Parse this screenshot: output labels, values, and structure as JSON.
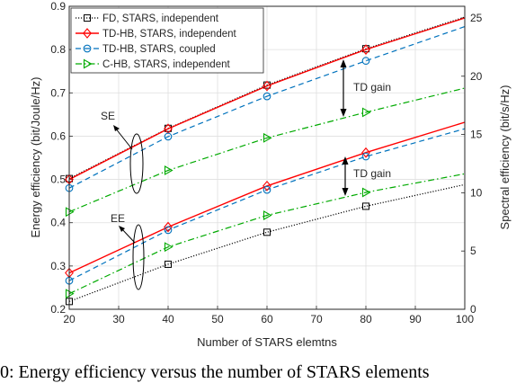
{
  "chart_data": {
    "type": "line",
    "xlabel": "Number of STARS elemtns",
    "ylabel_left": "Energy efficiency (bit/Joule/Hz)",
    "ylabel_right": "Spectral efficiency (bit/s/Hz)",
    "xlim": [
      20,
      100
    ],
    "ylim_left": [
      0.2,
      0.9
    ],
    "ylim_right": [
      0,
      26
    ],
    "x_ticks": [
      "20",
      "30",
      "40",
      "50",
      "60",
      "70",
      "80",
      "90",
      "100"
    ],
    "y_left_ticks": [
      "0.2",
      "0.3",
      "0.4",
      "0.5",
      "0.6",
      "0.7",
      "0.8",
      "0.9"
    ],
    "y_right_ticks": [
      "0",
      "5",
      "10",
      "15",
      "20",
      "25"
    ],
    "grid": true,
    "legend_position": "top-left",
    "x": [
      20,
      40,
      60,
      80
    ],
    "series": [
      {
        "name": "FD, STARS, independent",
        "color": "#000000",
        "dash": "dotted",
        "marker": "square",
        "metric": "EE",
        "values": [
          0.218,
          0.304,
          0.378,
          0.438
        ],
        "end_value": 0.488
      },
      {
        "name": "TD-HB, STARS, independent",
        "color": "#ff0000",
        "dash": "solid",
        "marker": "diamond",
        "metric": "EE",
        "values": [
          0.284,
          0.39,
          0.485,
          0.562
        ],
        "end_value": 0.632
      },
      {
        "name": "TD-HB, STARS, coupled",
        "color": "#0072bd",
        "dash": "dashed",
        "marker": "circle",
        "metric": "EE",
        "values": [
          0.266,
          0.383,
          0.476,
          0.553
        ],
        "end_value": 0.617
      },
      {
        "name": "C-HB, STARS, independent",
        "color": "#00aa00",
        "dash": "dashdot",
        "marker": "triangle-right",
        "metric": "EE",
        "values": [
          0.236,
          0.344,
          0.417,
          0.47
        ],
        "end_value": 0.513
      },
      {
        "name": "FD, STARS, independent",
        "color": "#000000",
        "dash": "dotted",
        "marker": "square",
        "metric": "SE",
        "values": [
          0.502,
          0.618,
          0.718,
          0.802
        ],
        "end_value": 0.875
      },
      {
        "name": "TD-HB, STARS, independent",
        "color": "#ff0000",
        "dash": "solid",
        "marker": "diamond",
        "metric": "SE",
        "values": [
          0.5,
          0.617,
          0.716,
          0.8
        ],
        "end_value": 0.873
      },
      {
        "name": "TD-HB, STARS, coupled",
        "color": "#0072bd",
        "dash": "dashed",
        "marker": "circle",
        "metric": "SE",
        "values": [
          0.48,
          0.599,
          0.692,
          0.774
        ],
        "end_value": 0.853
      },
      {
        "name": "C-HB, STARS, independent",
        "color": "#00aa00",
        "dash": "dashdot",
        "marker": "triangle-right",
        "metric": "SE",
        "values": [
          0.425,
          0.521,
          0.596,
          0.655
        ],
        "end_value": 0.711
      }
    ],
    "annotations": {
      "se_label": "SE",
      "ee_label": "EE",
      "td_gain_se": "TD gain",
      "td_gain_ee": "TD gain"
    }
  },
  "caption": "0: Energy efficiency versus the number of STARS elements"
}
